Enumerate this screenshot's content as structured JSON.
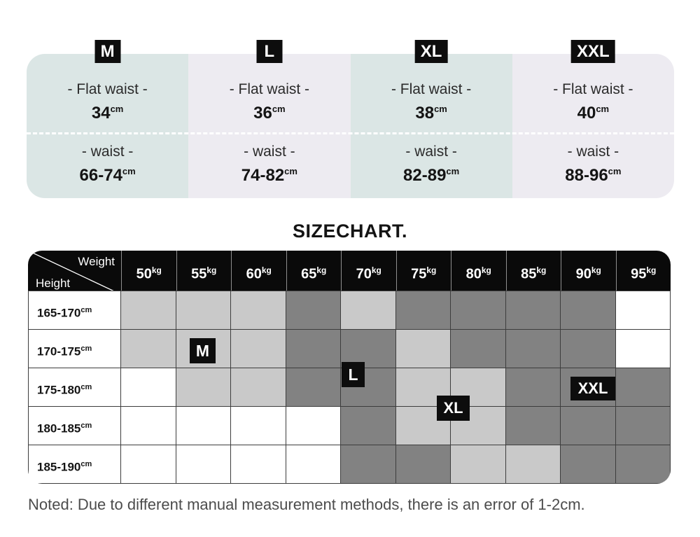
{
  "size_panel": {
    "sizes": [
      {
        "label": "M",
        "flat_waist_label": "- Flat waist -",
        "flat_waist_value": "34",
        "waist_label": "- waist -",
        "waist_value": "66-74",
        "unit": "cm"
      },
      {
        "label": "L",
        "flat_waist_label": "- Flat waist -",
        "flat_waist_value": "36",
        "waist_label": "- waist -",
        "waist_value": "74-82",
        "unit": "cm"
      },
      {
        "label": "XL",
        "flat_waist_label": "- Flat waist -",
        "flat_waist_value": "38",
        "waist_label": "- waist -",
        "waist_value": "82-89",
        "unit": "cm"
      },
      {
        "label": "XXL",
        "flat_waist_label": "- Flat waist -",
        "flat_waist_value": "40",
        "waist_label": "- waist -",
        "waist_value": "88-96",
        "unit": "cm"
      }
    ]
  },
  "chart": {
    "title": "SIZECHART.",
    "corner": {
      "top": "Weight",
      "bottom": "Height"
    },
    "weights": [
      {
        "value": "50",
        "unit": "kg"
      },
      {
        "value": "55",
        "unit": "kg"
      },
      {
        "value": "60",
        "unit": "kg"
      },
      {
        "value": "65",
        "unit": "kg"
      },
      {
        "value": "70",
        "unit": "kg"
      },
      {
        "value": "75",
        "unit": "kg"
      },
      {
        "value": "80",
        "unit": "kg"
      },
      {
        "value": "85",
        "unit": "kg"
      },
      {
        "value": "90",
        "unit": "kg"
      },
      {
        "value": "95",
        "unit": "kg"
      }
    ],
    "rows": [
      {
        "height": "165-170",
        "unit": "cm",
        "cells": [
          "light",
          "light",
          "light",
          "dark",
          "light",
          "dark",
          "dark",
          "dark",
          "dark",
          "white"
        ]
      },
      {
        "height": "170-175",
        "unit": "cm",
        "cells": [
          "light",
          "light",
          "light",
          "dark",
          "dark",
          "light",
          "dark",
          "dark",
          "dark",
          "white"
        ]
      },
      {
        "height": "175-180",
        "unit": "cm",
        "cells": [
          "white",
          "light",
          "light",
          "dark",
          "dark",
          "light",
          "light",
          "dark",
          "dark",
          "dark"
        ]
      },
      {
        "height": "180-185",
        "unit": "cm",
        "cells": [
          "white",
          "white",
          "white",
          "white",
          "dark",
          "light",
          "light",
          "dark",
          "dark",
          "dark"
        ]
      },
      {
        "height": "185-190",
        "unit": "cm",
        "cells": [
          "white",
          "white",
          "white",
          "white",
          "dark",
          "dark",
          "light",
          "light",
          "dark",
          "dark"
        ]
      }
    ],
    "badges": [
      {
        "label": "M",
        "at": "170-175cm / 55kg"
      },
      {
        "label": "L",
        "at": "170-180cm / 70kg"
      },
      {
        "label": "XL",
        "at": "175-185cm / 75-80kg"
      },
      {
        "label": "XXL",
        "at": "175-180cm / 90kg"
      }
    ]
  },
  "note": "Noted: Due to different manual measurement methods, there is an error of 1-2cm.",
  "colors": {
    "teal_column": "#dbe6e5",
    "lavender_column": "#edebf1",
    "cell_light": "#c9c9c9",
    "cell_dark": "#828282",
    "header_black": "#0a0a0a",
    "badge_black": "#0d0d0d",
    "note_text": "#4c4c4c"
  },
  "chart_data": [
    {
      "type": "table",
      "title": "Size measurements",
      "columns": [
        "M",
        "L",
        "XL",
        "XXL"
      ],
      "rows": [
        {
          "label": "Flat waist (cm)",
          "values": [
            "34",
            "36",
            "38",
            "40"
          ]
        },
        {
          "label": "waist (cm)",
          "values": [
            "66-74",
            "74-82",
            "82-89",
            "88-96"
          ]
        }
      ]
    },
    {
      "type": "heatmap",
      "title": "SIZECHART.",
      "xlabel": "Weight",
      "ylabel": "Height",
      "x": [
        "50kg",
        "55kg",
        "60kg",
        "65kg",
        "70kg",
        "75kg",
        "80kg",
        "85kg",
        "90kg",
        "95kg"
      ],
      "y": [
        "165-170cm",
        "170-175cm",
        "175-180cm",
        "180-185cm",
        "185-190cm"
      ],
      "values": [
        [
          "light",
          "light",
          "light",
          "dark",
          "light",
          "dark",
          "dark",
          "dark",
          "dark",
          "none"
        ],
        [
          "light",
          "light",
          "light",
          "dark",
          "dark",
          "light",
          "dark",
          "dark",
          "dark",
          "none"
        ],
        [
          "none",
          "light",
          "light",
          "dark",
          "dark",
          "light",
          "light",
          "dark",
          "dark",
          "dark"
        ],
        [
          "none",
          "none",
          "none",
          "none",
          "dark",
          "light",
          "light",
          "dark",
          "dark",
          "dark"
        ],
        [
          "none",
          "none",
          "none",
          "none",
          "dark",
          "dark",
          "light",
          "light",
          "dark",
          "dark"
        ]
      ],
      "annotations": [
        {
          "label": "M",
          "x": "55kg",
          "y": "170-175cm"
        },
        {
          "label": "L",
          "x": "70kg",
          "y": "170-175cm/175-180cm"
        },
        {
          "label": "XL",
          "x": "75-80kg",
          "y": "175-180cm/180-185cm"
        },
        {
          "label": "XXL",
          "x": "90kg",
          "y": "175-180cm"
        }
      ],
      "legend_position": "none",
      "grid": true
    }
  ]
}
